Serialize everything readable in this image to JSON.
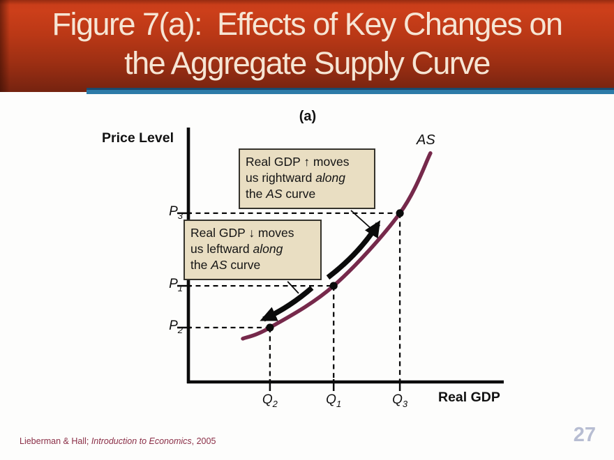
{
  "header": {
    "title_line1": "Figure 7(a):  Effects of Key Changes on",
    "title_line2": "the Aggregate Supply Curve"
  },
  "footer": {
    "citation_prefix": "Lieberman & Hall; ",
    "citation_title": "Introduction to Economics",
    "citation_suffix": ", 2005",
    "page_number": "27"
  },
  "chart_data": {
    "type": "line",
    "panel_label": "(a)",
    "ylabel": "Price Level",
    "xlabel": "Real GDP",
    "curve_label": "AS",
    "grid": false,
    "axis_scale": "qualitative (no numeric tick values shown)",
    "colors": {
      "curve": "#76294b",
      "axis": "#0b0b0b",
      "callout_bg": "#e9dec2",
      "callout_border": "#35332c",
      "header_red": "#b53816",
      "accent_blue": "#2d7ba8"
    },
    "series": [
      {
        "name": "AS",
        "points_norm": [
          [
            17.7,
            17.1
          ],
          [
            26.3,
            21.5
          ],
          [
            46.5,
            38.0
          ],
          [
            67.5,
            66.7
          ],
          [
            77.2,
            90.4
          ]
        ]
      }
    ],
    "marked_points": [
      {
        "x_label": "Q2",
        "y_label": "P2",
        "x": 26.3,
        "y": 21.5
      },
      {
        "x_label": "Q1",
        "y_label": "P1",
        "x": 46.5,
        "y": 38.0
      },
      {
        "x_label": "Q3",
        "y_label": "P3",
        "x": 67.5,
        "y": 66.7
      }
    ],
    "x_ticks": [
      {
        "base": "Q",
        "sub": "2",
        "x": 26.3
      },
      {
        "base": "Q",
        "sub": "1",
        "x": 46.5
      },
      {
        "base": "Q",
        "sub": "3",
        "x": 67.5
      }
    ],
    "y_ticks": [
      {
        "base": "P",
        "sub": "3",
        "y": 66.7
      },
      {
        "base": "P",
        "sub": "1",
        "y": 38.0
      },
      {
        "base": "P",
        "sub": "2",
        "y": 21.5
      }
    ],
    "arrows": [
      {
        "name": "rightward-along-as",
        "from": [
          44.7,
          41.3
        ],
        "ctrl": [
          54.6,
          50.7
        ],
        "to": [
          60.6,
          62.5
        ]
      },
      {
        "name": "leftward-along-as",
        "from": [
          39.6,
          37.2
        ],
        "ctrl": [
          32.4,
          29.4
        ],
        "to": [
          24.3,
          24.8
        ]
      }
    ],
    "leaders": [
      {
        "from": [
          52.0,
          67.8
        ],
        "to": [
          58.4,
          60.6
        ]
      },
      {
        "from": [
          31.9,
          39.7
        ],
        "to": [
          35.4,
          35.0
        ]
      }
    ],
    "annotations": [
      {
        "id": "callout-gdp-up",
        "lines": [
          [
            {
              "t": "Real GDP ↑ moves"
            }
          ],
          [
            {
              "t": "us rightward "
            },
            {
              "t": "along",
              "i": true
            }
          ],
          [
            {
              "t": "the "
            },
            {
              "t": "AS",
              "i": true
            },
            {
              "t": " curve"
            }
          ]
        ]
      },
      {
        "id": "callout-gdp-down",
        "lines": [
          [
            {
              "t": "Real GDP ↓ moves"
            }
          ],
          [
            {
              "t": "us leftward "
            },
            {
              "t": "along",
              "i": true
            }
          ],
          [
            {
              "t": "the "
            },
            {
              "t": "AS",
              "i": true
            },
            {
              "t": " curve"
            }
          ]
        ]
      }
    ]
  }
}
